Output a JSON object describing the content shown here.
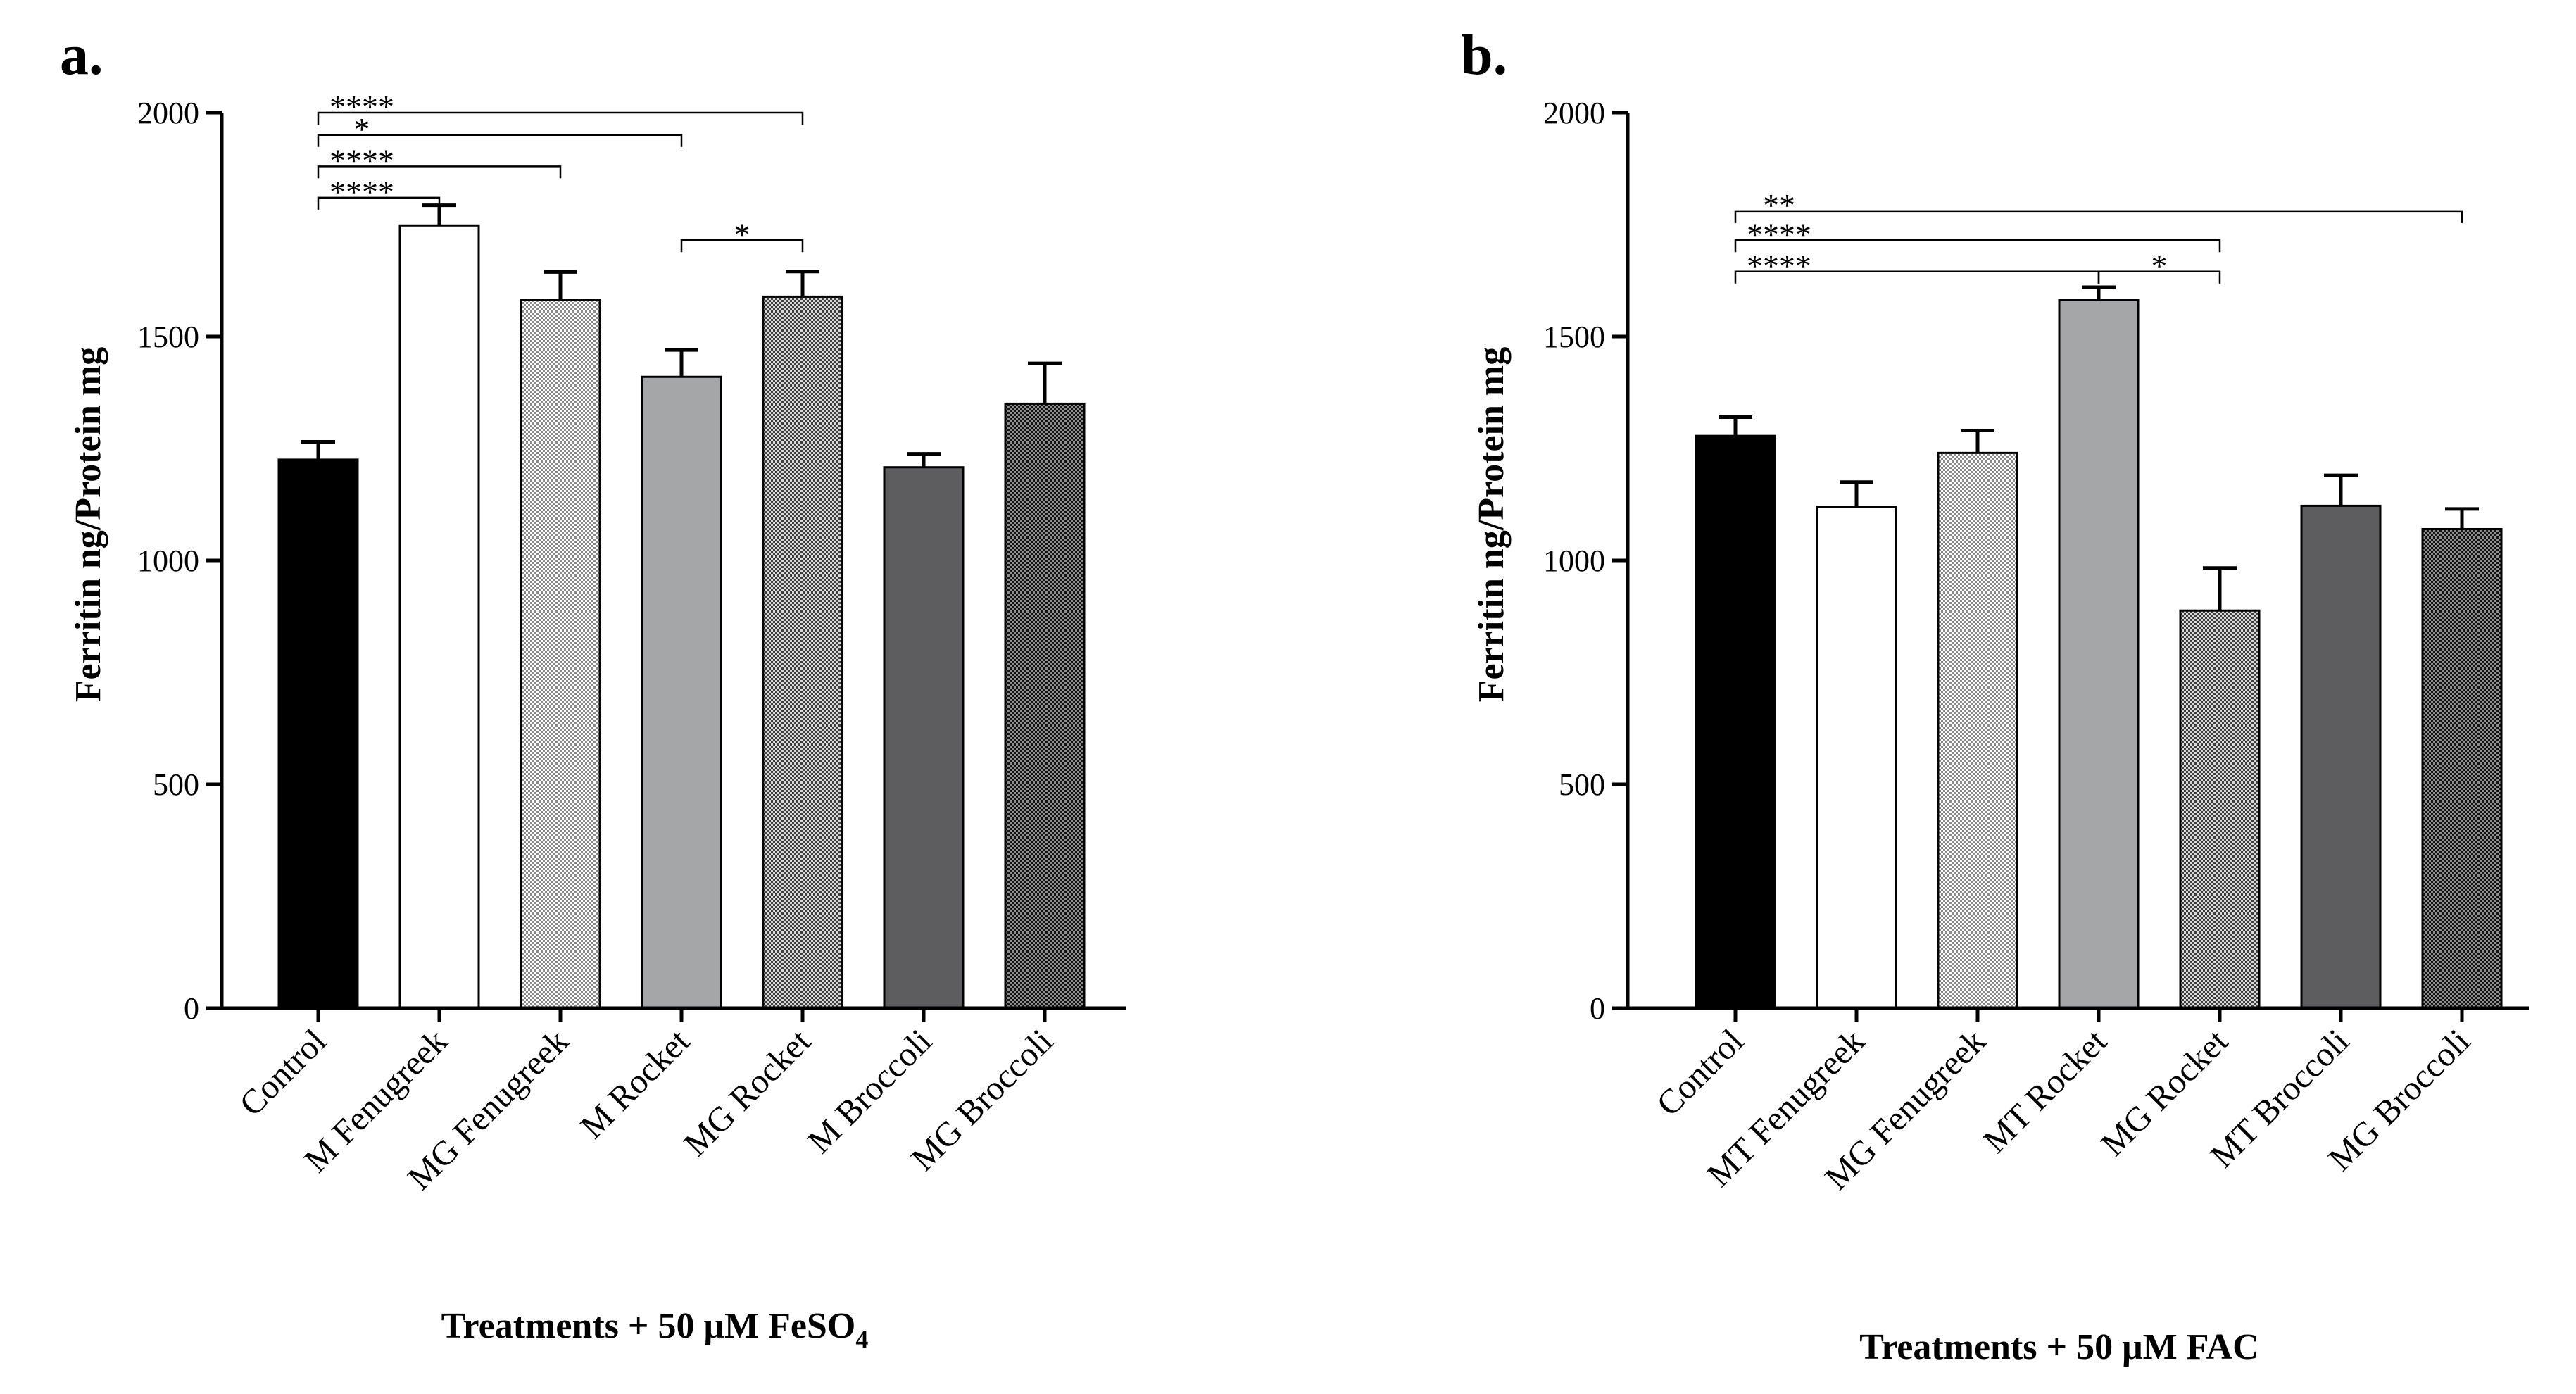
{
  "colors": {
    "black": "#000000",
    "white": "#ffffff",
    "light_gray": "#a5a6a8",
    "dark_gray": "#5d5d5f"
  },
  "chart_data": [
    {
      "type": "bar",
      "panel_label": "a.",
      "ylabel": "Ferritin ng/Protein mg",
      "xlabel_main": "Treatments + 50 μM FeSO",
      "xlabel_subscript": "4",
      "ylim": [
        0,
        2000
      ],
      "yticks": [
        0,
        500,
        1000,
        1500,
        2000
      ],
      "categories": [
        "Control",
        "M Fenugreek",
        "MG Fenugreek",
        "M Rocket",
        "MG Rocket",
        "M Broccoli",
        "MG Broccoli"
      ],
      "values": [
        1225,
        1748,
        1582,
        1410,
        1589,
        1208,
        1350
      ],
      "errors": [
        40,
        45,
        62,
        60,
        56,
        30,
        90
      ],
      "fills": [
        "solid-black",
        "white",
        "checker-light",
        "solid-light-gray",
        "checker-medium",
        "solid-dark-gray",
        "checker-dark"
      ],
      "significance": [
        {
          "from": 0,
          "to": 4,
          "label": "****",
          "level": 2000
        },
        {
          "from": 0,
          "to": 3,
          "label": "*",
          "level": 1950
        },
        {
          "from": 0,
          "to": 2,
          "label": "****",
          "level": 1880
        },
        {
          "from": 0,
          "to": 1,
          "label": "****",
          "level": 1810
        },
        {
          "from": 3,
          "to": 4,
          "label": "*",
          "level": 1715
        }
      ]
    },
    {
      "type": "bar",
      "panel_label": "b.",
      "ylabel": "Ferritin ng/Protein mg",
      "xlabel_main": "Treatments + 50 μM FAC",
      "xlabel_subscript": "",
      "ylim": [
        0,
        2000
      ],
      "yticks": [
        0,
        500,
        1000,
        1500,
        2000
      ],
      "categories": [
        "Control",
        "MT Fenugreek",
        "MG Fenugreek",
        "MT Rocket",
        "MG Rocket",
        "MT Broccoli",
        "MG Broccoli"
      ],
      "values": [
        1278,
        1120,
        1240,
        1582,
        888,
        1122,
        1070
      ],
      "errors": [
        42,
        55,
        50,
        28,
        95,
        68,
        45
      ],
      "fills": [
        "solid-black",
        "white",
        "checker-light",
        "solid-light-gray",
        "checker-medium",
        "solid-dark-gray",
        "checker-dark"
      ],
      "significance": [
        {
          "from": 0,
          "to": 6,
          "label": "**",
          "level": 1780
        },
        {
          "from": 0,
          "to": 4,
          "label": "****",
          "level": 1715
        },
        {
          "from": 0,
          "to": 3,
          "label": "****",
          "level": 1645
        },
        {
          "from": 3,
          "to": 4,
          "label": "*",
          "level": 1645
        }
      ]
    }
  ]
}
